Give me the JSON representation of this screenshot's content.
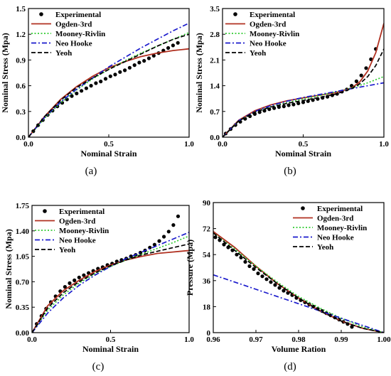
{
  "colors": {
    "experimental": "#000000",
    "ogden": "#b03020",
    "mooney": "#33cc33",
    "neo": "#1a1acc",
    "yeoh": "#000000"
  },
  "chart_data": [
    {
      "type": "line",
      "panel_label": "(a)",
      "xlabel": "Nominal Strain",
      "ylabel": "Nominal Stress (Mpa)",
      "xlim": [
        0,
        1.0
      ],
      "ylim": [
        0,
        1.5
      ],
      "xticks": [
        "0.0",
        "0.5",
        "1.0"
      ],
      "yticks": [
        "0.0",
        "0.3",
        "0.6",
        "0.9",
        "1.2",
        "1.5"
      ],
      "legend_position": "top-left",
      "series": [
        {
          "name": "Experimental",
          "style": "dots",
          "color_key": "experimental",
          "x": [
            0.0,
            0.03,
            0.06,
            0.09,
            0.12,
            0.15,
            0.18,
            0.21,
            0.24,
            0.27,
            0.3,
            0.33,
            0.36,
            0.39,
            0.42,
            0.45,
            0.48,
            0.51,
            0.54,
            0.57,
            0.6,
            0.63,
            0.66,
            0.69,
            0.72,
            0.75,
            0.78,
            0.81,
            0.84,
            0.87,
            0.9,
            0.93
          ],
          "y": [
            0.0,
            0.07,
            0.14,
            0.2,
            0.26,
            0.31,
            0.36,
            0.4,
            0.44,
            0.48,
            0.51,
            0.54,
            0.57,
            0.6,
            0.63,
            0.65,
            0.68,
            0.71,
            0.73,
            0.76,
            0.78,
            0.81,
            0.84,
            0.87,
            0.89,
            0.92,
            0.95,
            0.98,
            1.01,
            1.04,
            1.07,
            1.1
          ]
        },
        {
          "name": "Ogden-3rd",
          "style": "solid",
          "color_key": "ogden",
          "x": [
            0.0,
            0.1,
            0.2,
            0.3,
            0.4,
            0.5,
            0.6,
            0.7,
            0.8,
            0.9,
            1.0
          ],
          "y": [
            0.0,
            0.24,
            0.44,
            0.59,
            0.71,
            0.81,
            0.88,
            0.94,
            0.98,
            1.01,
            1.03
          ]
        },
        {
          "name": "Mooney-Rivlin",
          "style": "dotted",
          "color_key": "mooney",
          "x": [
            0.0,
            0.1,
            0.2,
            0.3,
            0.4,
            0.5,
            0.6,
            0.7,
            0.8,
            0.9,
            1.0
          ],
          "y": [
            0.0,
            0.22,
            0.4,
            0.55,
            0.68,
            0.79,
            0.89,
            0.98,
            1.06,
            1.14,
            1.22
          ]
        },
        {
          "name": "Neo Hooke",
          "style": "dashdot",
          "color_key": "neo",
          "x": [
            0.0,
            0.1,
            0.2,
            0.3,
            0.4,
            0.5,
            0.6,
            0.7,
            0.8,
            0.9,
            1.0
          ],
          "y": [
            0.0,
            0.23,
            0.41,
            0.56,
            0.69,
            0.82,
            0.93,
            1.04,
            1.14,
            1.24,
            1.33
          ]
        },
        {
          "name": "Yeoh",
          "style": "dashed",
          "color_key": "yeoh",
          "x": [
            0.0,
            0.1,
            0.2,
            0.3,
            0.4,
            0.5,
            0.6,
            0.7,
            0.8,
            0.9,
            1.0
          ],
          "y": [
            0.0,
            0.24,
            0.43,
            0.58,
            0.69,
            0.79,
            0.88,
            0.97,
            1.06,
            1.14,
            1.2
          ]
        }
      ]
    },
    {
      "type": "line",
      "panel_label": "(b)",
      "xlabel": "Nominal Strain",
      "ylabel": "Nominal Stress (Mpa)",
      "xlim": [
        0,
        1.0
      ],
      "ylim": [
        0,
        3.5
      ],
      "xticks": [
        "0.0",
        "0.5",
        "1.0"
      ],
      "yticks": [
        "0.0",
        "0.7",
        "1.4",
        "2.1",
        "2.8",
        "3.5"
      ],
      "legend_position": "top-left",
      "series": [
        {
          "name": "Experimental",
          "style": "dots",
          "color_key": "experimental",
          "x": [
            0.02,
            0.05,
            0.08,
            0.11,
            0.14,
            0.17,
            0.2,
            0.23,
            0.26,
            0.29,
            0.32,
            0.35,
            0.38,
            0.41,
            0.44,
            0.47,
            0.5,
            0.53,
            0.56,
            0.59,
            0.62,
            0.65,
            0.68,
            0.71,
            0.74,
            0.77,
            0.8,
            0.83,
            0.86,
            0.89,
            0.92,
            0.95
          ],
          "y": [
            0.1,
            0.22,
            0.33,
            0.42,
            0.5,
            0.57,
            0.63,
            0.68,
            0.72,
            0.76,
            0.79,
            0.82,
            0.84,
            0.87,
            0.89,
            0.92,
            0.95,
            0.98,
            1.01,
            1.04,
            1.07,
            1.1,
            1.14,
            1.18,
            1.24,
            1.3,
            1.4,
            1.52,
            1.68,
            1.88,
            2.12,
            2.4
          ]
        },
        {
          "name": "Ogden-3rd",
          "style": "solid",
          "color_key": "ogden",
          "x": [
            0.0,
            0.1,
            0.2,
            0.3,
            0.4,
            0.5,
            0.6,
            0.7,
            0.8,
            0.85,
            0.9,
            0.95,
            1.0
          ],
          "y": [
            0.0,
            0.46,
            0.72,
            0.88,
            0.99,
            1.07,
            1.14,
            1.21,
            1.34,
            1.5,
            1.8,
            2.3,
            3.1
          ]
        },
        {
          "name": "Mooney-Rivlin",
          "style": "dotted",
          "color_key": "mooney",
          "x": [
            0.0,
            0.1,
            0.2,
            0.3,
            0.4,
            0.5,
            0.6,
            0.7,
            0.8,
            0.9,
            1.0
          ],
          "y": [
            0.0,
            0.44,
            0.68,
            0.83,
            0.94,
            1.04,
            1.13,
            1.23,
            1.34,
            1.48,
            1.65
          ]
        },
        {
          "name": "Neo Hooke",
          "style": "dashdot",
          "color_key": "neo",
          "x": [
            0.0,
            0.1,
            0.2,
            0.3,
            0.4,
            0.5,
            0.6,
            0.7,
            0.8,
            0.9,
            1.0
          ],
          "y": [
            0.0,
            0.45,
            0.7,
            0.86,
            0.98,
            1.08,
            1.16,
            1.24,
            1.32,
            1.4,
            1.48
          ]
        },
        {
          "name": "Yeoh",
          "style": "dashed",
          "color_key": "yeoh",
          "x": [
            0.0,
            0.1,
            0.2,
            0.3,
            0.4,
            0.5,
            0.6,
            0.7,
            0.8,
            0.85,
            0.9,
            0.95,
            1.0
          ],
          "y": [
            0.0,
            0.44,
            0.68,
            0.82,
            0.92,
            1.0,
            1.08,
            1.17,
            1.32,
            1.45,
            1.65,
            1.95,
            2.4
          ]
        }
      ]
    },
    {
      "type": "line",
      "panel_label": "(c)",
      "xlabel": "Nominal Strain",
      "ylabel": "Nominal Stress (Mpa)",
      "xlim": [
        0,
        1.0
      ],
      "ylim": [
        0,
        1.75
      ],
      "xticks": [
        "0.0",
        "0.5",
        "1.0"
      ],
      "yticks": [
        "0.00",
        "0.35",
        "0.70",
        "1.05",
        "1.40",
        "1.75"
      ],
      "legend_position": "top-left",
      "series": [
        {
          "name": "Experimental",
          "style": "dots",
          "color_key": "experimental",
          "x": [
            0.0,
            0.03,
            0.06,
            0.09,
            0.12,
            0.15,
            0.18,
            0.21,
            0.24,
            0.27,
            0.3,
            0.33,
            0.36,
            0.39,
            0.42,
            0.45,
            0.48,
            0.51,
            0.54,
            0.57,
            0.6,
            0.63,
            0.66,
            0.69,
            0.72,
            0.75,
            0.78,
            0.81,
            0.84,
            0.87,
            0.9,
            0.93
          ],
          "y": [
            0.0,
            0.12,
            0.23,
            0.33,
            0.42,
            0.5,
            0.57,
            0.63,
            0.68,
            0.72,
            0.76,
            0.79,
            0.82,
            0.85,
            0.88,
            0.9,
            0.93,
            0.95,
            0.98,
            1.0,
            1.02,
            1.05,
            1.07,
            1.1,
            1.13,
            1.17,
            1.21,
            1.26,
            1.32,
            1.39,
            1.48,
            1.6
          ]
        },
        {
          "name": "Ogden-3rd",
          "style": "solid",
          "color_key": "ogden",
          "x": [
            0.0,
            0.1,
            0.2,
            0.3,
            0.4,
            0.5,
            0.6,
            0.7,
            0.8,
            0.9,
            1.0
          ],
          "y": [
            0.0,
            0.37,
            0.58,
            0.72,
            0.84,
            0.93,
            1.0,
            1.05,
            1.09,
            1.11,
            1.13
          ]
        },
        {
          "name": "Mooney-Rivlin",
          "style": "dotted",
          "color_key": "mooney",
          "x": [
            0.0,
            0.1,
            0.2,
            0.3,
            0.4,
            0.5,
            0.6,
            0.7,
            0.8,
            0.9,
            1.0
          ],
          "y": [
            0.0,
            0.31,
            0.52,
            0.68,
            0.81,
            0.91,
            1.0,
            1.08,
            1.16,
            1.24,
            1.33
          ]
        },
        {
          "name": "Neo Hooke",
          "style": "dashdot",
          "color_key": "neo",
          "x": [
            0.0,
            0.1,
            0.2,
            0.3,
            0.4,
            0.5,
            0.6,
            0.7,
            0.8,
            0.9,
            1.0
          ],
          "y": [
            0.0,
            0.27,
            0.48,
            0.65,
            0.79,
            0.91,
            1.02,
            1.11,
            1.2,
            1.29,
            1.38
          ]
        },
        {
          "name": "Yeoh",
          "style": "dashed",
          "color_key": "yeoh",
          "x": [
            0.0,
            0.1,
            0.2,
            0.3,
            0.4,
            0.5,
            0.6,
            0.7,
            0.8,
            0.9,
            1.0
          ],
          "y": [
            0.0,
            0.34,
            0.55,
            0.7,
            0.82,
            0.92,
            1.0,
            1.07,
            1.12,
            1.17,
            1.22
          ]
        }
      ]
    },
    {
      "type": "line",
      "panel_label": "(d)",
      "xlabel": "Volume Ration",
      "ylabel": "Pressure (Mpa)",
      "xlim": [
        0.96,
        1.0
      ],
      "ylim": [
        0,
        90
      ],
      "xticks": [
        "0.96",
        "0.97",
        "0.98",
        "0.99",
        "1.00"
      ],
      "yticks": [
        "0",
        "18",
        "36",
        "54",
        "72",
        "90"
      ],
      "legend_position": "top-right",
      "series": [
        {
          "name": "Experimental",
          "style": "dots",
          "color_key": "experimental",
          "x": [
            0.9605,
            0.9615,
            0.9625,
            0.9635,
            0.9645,
            0.9655,
            0.9665,
            0.9675,
            0.9685,
            0.9695,
            0.9705,
            0.9715,
            0.9725,
            0.9735,
            0.9745,
            0.9755,
            0.9765,
            0.9775,
            0.9785,
            0.9795,
            0.9805,
            0.9815,
            0.9825,
            0.9835,
            0.9845,
            0.9855,
            0.9865,
            0.9875,
            0.9885,
            0.9895,
            0.9905,
            0.9915,
            0.9925
          ],
          "y": [
            66,
            64,
            61,
            59,
            57,
            54,
            52,
            49,
            46,
            44,
            41,
            39,
            37,
            35,
            33,
            31,
            29,
            27.5,
            26,
            24,
            22.5,
            21,
            19.5,
            18,
            16.5,
            15,
            13.5,
            12,
            10.5,
            9,
            7.5,
            6,
            4
          ]
        },
        {
          "name": "Ogden-3rd",
          "style": "solid",
          "color_key": "ogden",
          "x": [
            0.96,
            0.965,
            0.97,
            0.975,
            0.98,
            0.985,
            0.99,
            0.995,
            1.0
          ],
          "y": [
            70,
            59,
            46,
            34,
            24,
            15,
            8,
            3,
            0
          ]
        },
        {
          "name": "Mooney-Rivlin",
          "style": "dotted",
          "color_key": "mooney",
          "x": [
            0.96,
            0.965,
            0.97,
            0.975,
            0.98,
            0.985,
            0.99,
            0.995,
            1.0
          ],
          "y": [
            69,
            58,
            46,
            35,
            25,
            17,
            10,
            4,
            0
          ]
        },
        {
          "name": "Neo Hooke",
          "style": "dashdot",
          "color_key": "neo",
          "x": [
            0.96,
            0.965,
            0.97,
            0.975,
            0.98,
            0.985,
            0.99,
            0.995,
            1.0
          ],
          "y": [
            40,
            35,
            30,
            25,
            20,
            15,
            10,
            5,
            0
          ]
        },
        {
          "name": "Yeoh",
          "style": "dashed",
          "color_key": "yeoh",
          "x": [
            0.96,
            0.965,
            0.97,
            0.975,
            0.98,
            0.985,
            0.99,
            0.995,
            1.0
          ],
          "y": [
            69,
            57,
            45,
            34,
            24,
            15,
            8,
            3,
            0
          ]
        }
      ]
    }
  ]
}
